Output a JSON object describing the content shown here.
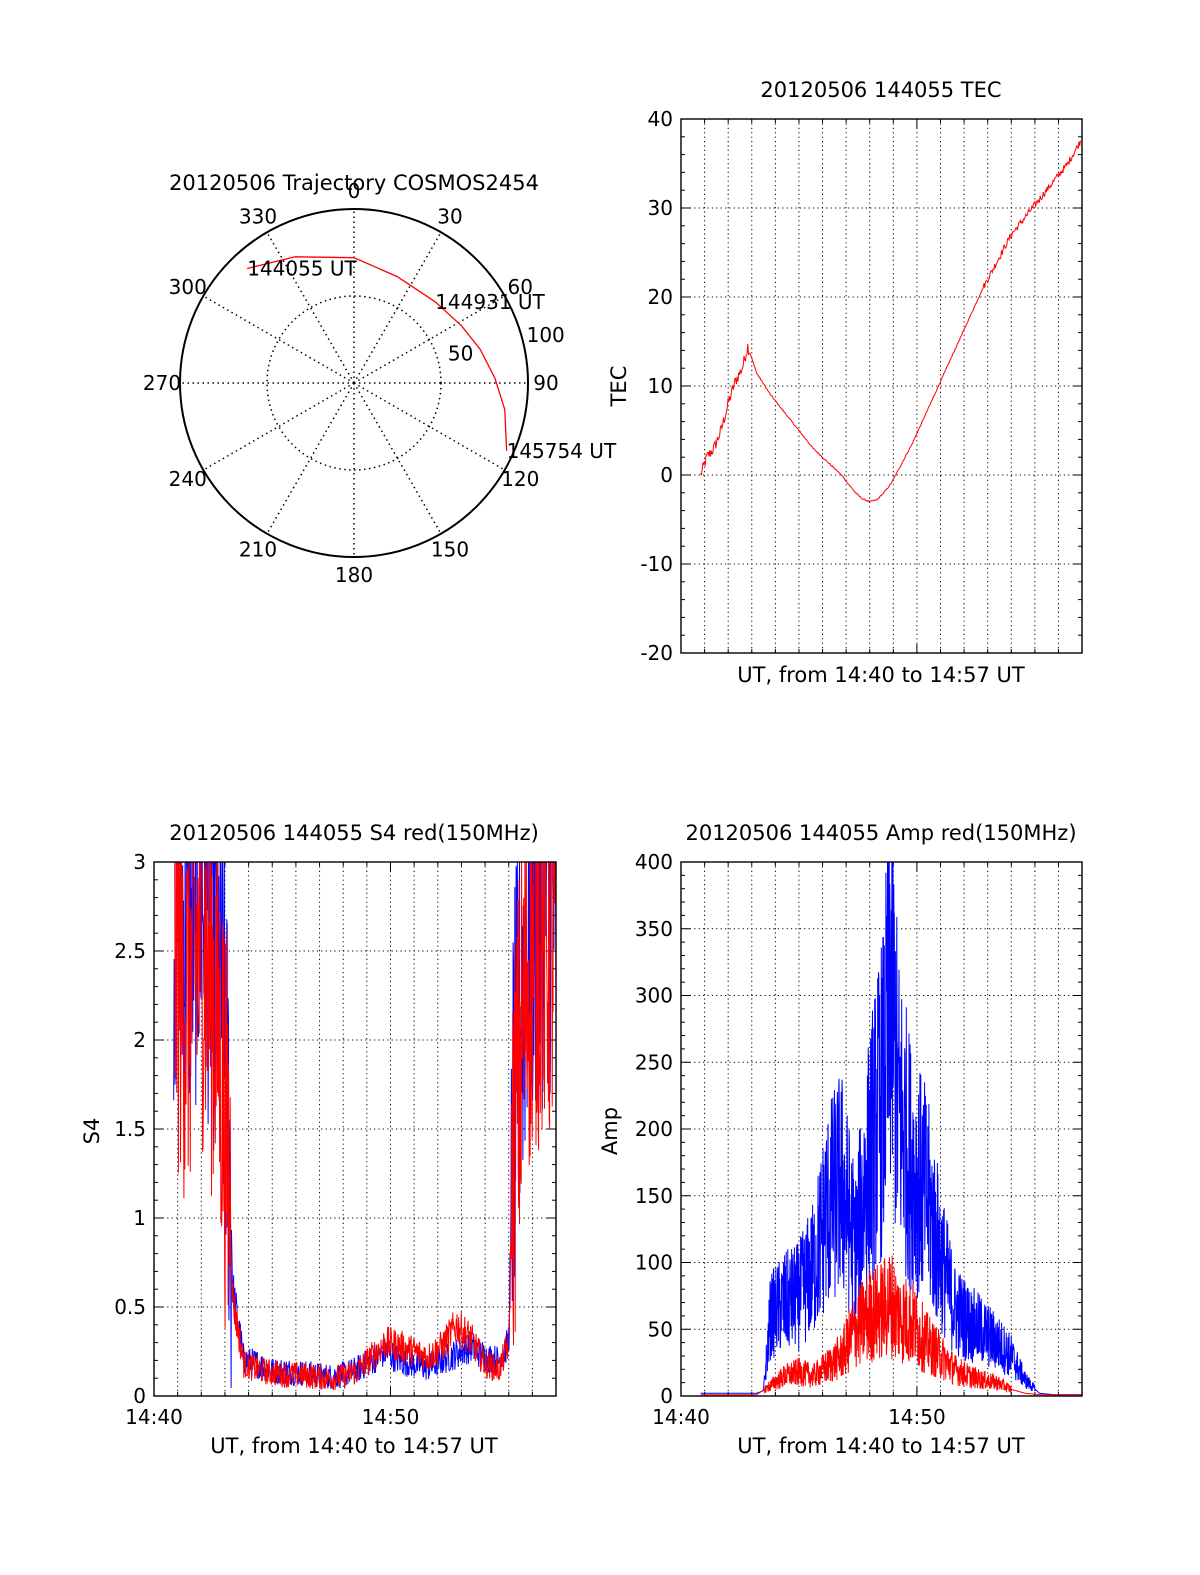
{
  "chart_data": [
    {
      "id": "polar",
      "type": "scatter",
      "title": "20120506 Trajectory COSMOS2454",
      "coordinate_system": "polar (azimuth clockwise from north, zenith angle radial)",
      "azimuth_labels": [
        "0",
        "30",
        "60",
        "90",
        "120",
        "150",
        "180",
        "210",
        "240",
        "270",
        "300",
        "330"
      ],
      "radial_labels": [
        "50",
        "100"
      ],
      "rlim": [
        0,
        100
      ],
      "grid": true,
      "series": [
        {
          "color": "#ff0000",
          "points": [
            {
              "az": 317,
              "r": 90
            },
            {
              "az": 335,
              "r": 80
            },
            {
              "az": 0,
              "r": 72
            },
            {
              "az": 22,
              "r": 66
            },
            {
              "az": 45,
              "r": 66
            },
            {
              "az": 62,
              "r": 70
            },
            {
              "az": 75,
              "r": 75
            },
            {
              "az": 88,
              "r": 81
            },
            {
              "az": 100,
              "r": 88
            },
            {
              "az": 114,
              "r": 96
            }
          ]
        }
      ],
      "annotations": [
        {
          "text": "144055 UT",
          "az": 317,
          "r": 90
        },
        {
          "text": "144931 UT",
          "az": 45,
          "r": 66
        },
        {
          "text": "145754 UT",
          "az": 114,
          "r": 96
        }
      ]
    },
    {
      "id": "tec",
      "type": "line",
      "title": "20120506 144055 TEC",
      "xlabel": "UT, from 14:40 to 14:57 UT",
      "ylabel": "TEC",
      "xlim": [
        14.6667,
        14.95
      ],
      "ylim": [
        -20,
        40
      ],
      "yticks": [
        -20,
        -10,
        0,
        10,
        20,
        30,
        40
      ],
      "xtick_labels": [],
      "grid": true,
      "series": [
        {
          "color": "#ff0000",
          "x": [
            14.6806,
            14.685,
            14.69,
            14.695,
            14.7,
            14.705,
            14.71,
            14.7139,
            14.72,
            14.73,
            14.74,
            14.75,
            14.76,
            14.77,
            14.78,
            14.785,
            14.79,
            14.795,
            14.8,
            14.805,
            14.81,
            14.815,
            14.82,
            14.83,
            14.84,
            14.85,
            14.86,
            14.87,
            14.88,
            14.89,
            14.9,
            14.91,
            14.92,
            14.93,
            14.94,
            14.9489
          ],
          "y": [
            0,
            2,
            3,
            5,
            8,
            10.5,
            12,
            14.5,
            11.5,
            9,
            7,
            5,
            3,
            1.5,
            0,
            -1,
            -2,
            -2.7,
            -3,
            -2.8,
            -2,
            -1,
            0.5,
            3.5,
            7,
            10.5,
            14,
            17.5,
            21,
            24,
            27,
            29,
            31,
            33,
            35,
            37.5
          ]
        }
      ]
    },
    {
      "id": "s4",
      "type": "line",
      "title": "20120506 144055 S4 red(150MHz)",
      "xlabel": "UT, from 14:40 to 14:57 UT",
      "ylabel": "S4",
      "xlim": [
        14.6667,
        14.95
      ],
      "ylim": [
        0,
        3
      ],
      "yticks": [
        0,
        0.5,
        1,
        1.5,
        2,
        2.5,
        3
      ],
      "xtick_labels": [
        "14:40",
        "14:50"
      ],
      "grid": true,
      "series": [
        {
          "color": "#0000ff",
          "x": [
            14.6806,
            14.69,
            14.7,
            14.71,
            14.7139,
            14.72,
            14.7222,
            14.73,
            14.74,
            14.75,
            14.76,
            14.77,
            14.78,
            14.79,
            14.8,
            14.81,
            14.82,
            14.83,
            14.84,
            14.85,
            14.86,
            14.87,
            14.88,
            14.89,
            14.9,
            14.91,
            14.9167,
            14.92,
            14.93,
            14.94,
            14.95
          ],
          "y": [
            2.8,
            2.6,
            2.9,
            2.5,
            2.3,
            1.4,
            0.6,
            0.2,
            0.18,
            0.14,
            0.14,
            0.13,
            0.12,
            0.11,
            0.12,
            0.15,
            0.2,
            0.25,
            0.2,
            0.18,
            0.16,
            0.2,
            0.24,
            0.28,
            0.22,
            0.2,
            0.3,
            1.6,
            2.6,
            2.8,
            2.9
          ]
        },
        {
          "color": "#ff0000",
          "x": [
            14.6806,
            14.69,
            14.7,
            14.71,
            14.7139,
            14.72,
            14.7222,
            14.73,
            14.74,
            14.75,
            14.76,
            14.77,
            14.78,
            14.79,
            14.8,
            14.81,
            14.82,
            14.83,
            14.84,
            14.85,
            14.86,
            14.87,
            14.88,
            14.89,
            14.9,
            14.91,
            14.9167,
            14.92,
            14.93,
            14.94,
            14.95
          ],
          "y": [
            2.5,
            2.2,
            2.6,
            2.2,
            1.9,
            1.2,
            0.55,
            0.18,
            0.15,
            0.13,
            0.12,
            0.12,
            0.11,
            0.1,
            0.11,
            0.14,
            0.22,
            0.3,
            0.28,
            0.25,
            0.22,
            0.28,
            0.4,
            0.32,
            0.18,
            0.15,
            0.3,
            1.4,
            2.4,
            2.6,
            2.5
          ]
        }
      ]
    },
    {
      "id": "amp",
      "type": "line",
      "title": "20120506 144055 Amp red(150MHz)",
      "xlabel": "UT, from 14:40 to 14:57 UT",
      "ylabel": "Amp",
      "xlim": [
        14.6667,
        14.95
      ],
      "ylim": [
        0,
        400
      ],
      "yticks": [
        0,
        50,
        100,
        150,
        200,
        250,
        300,
        350,
        400
      ],
      "xtick_labels": [
        "14:40",
        "14:50"
      ],
      "grid": true,
      "series": [
        {
          "color": "#0000ff",
          "x": [
            14.6806,
            14.7,
            14.72,
            14.725,
            14.73,
            14.74,
            14.75,
            14.76,
            14.77,
            14.78,
            14.79,
            14.8,
            14.81,
            14.815,
            14.82,
            14.83,
            14.84,
            14.85,
            14.86,
            14.87,
            14.88,
            14.89,
            14.9,
            14.91,
            14.92,
            14.93,
            14.95
          ],
          "y": [
            2,
            2,
            2,
            4,
            60,
            70,
            75,
            95,
            140,
            160,
            110,
            180,
            230,
            315,
            220,
            170,
            150,
            105,
            65,
            55,
            48,
            40,
            30,
            12,
            2,
            1,
            1
          ]
        },
        {
          "color": "#ff0000",
          "x": [
            14.6806,
            14.72,
            14.73,
            14.74,
            14.75,
            14.76,
            14.77,
            14.78,
            14.79,
            14.8,
            14.81,
            14.815,
            14.82,
            14.83,
            14.84,
            14.85,
            14.86,
            14.87,
            14.88,
            14.89,
            14.9,
            14.91,
            14.92,
            14.95
          ],
          "y": [
            1,
            1,
            8,
            15,
            18,
            15,
            22,
            30,
            50,
            60,
            65,
            70,
            60,
            55,
            40,
            30,
            20,
            15,
            12,
            10,
            5,
            2,
            1,
            1
          ]
        }
      ]
    }
  ]
}
